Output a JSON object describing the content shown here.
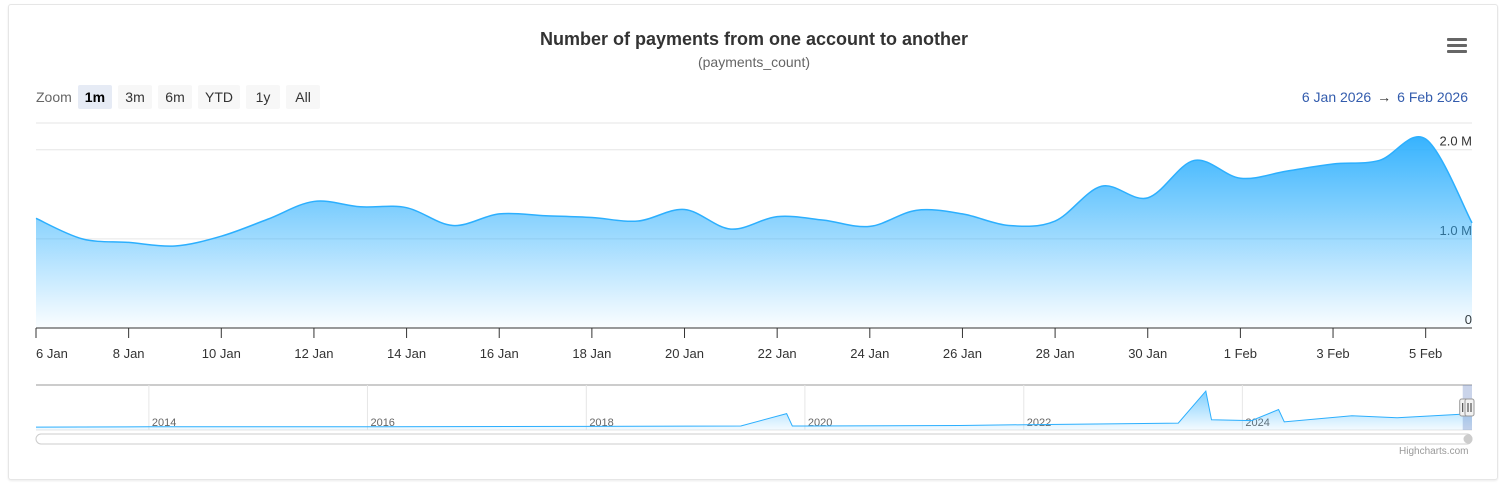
{
  "title": "Number of payments from one account to another",
  "subtitle": "(payments_count)",
  "menu_icon": "hamburger-menu-icon",
  "zoom": {
    "label": "Zoom",
    "buttons": [
      "1m",
      "3m",
      "6m",
      "YTD",
      "1y",
      "All"
    ],
    "active": "1m"
  },
  "range": {
    "from": "6 Jan 2026",
    "arrow": "→",
    "to": "6 Feb 2026"
  },
  "credits": "Highcharts.com",
  "colors": {
    "area_top": "#2caffe",
    "area_bottom": "#ffffff",
    "line": "#2caffe",
    "grid": "#e6e6e6",
    "axis": "#333333",
    "range_text": "#335cad"
  },
  "chart_data": [
    {
      "type": "area",
      "title": "Number of payments from one account to another",
      "subtitle": "(payments_count)",
      "x_tick_labels": [
        "6 Jan",
        "8 Jan",
        "10 Jan",
        "12 Jan",
        "14 Jan",
        "16 Jan",
        "18 Jan",
        "20 Jan",
        "22 Jan",
        "24 Jan",
        "26 Jan",
        "28 Jan",
        "30 Jan",
        "1 Feb",
        "3 Feb",
        "5 Feb"
      ],
      "y_tick_labels": [
        "0",
        "1.0 M",
        "2.0 M"
      ],
      "ylim": [
        0,
        2300000
      ],
      "xlim": [
        "2026-01-06",
        "2026-02-06"
      ],
      "grid": true,
      "series": [
        {
          "x": [
            "2026-01-06",
            "2026-01-07",
            "2026-01-08",
            "2026-01-09",
            "2026-01-10",
            "2026-01-11",
            "2026-01-12",
            "2026-01-13",
            "2026-01-14",
            "2026-01-15",
            "2026-01-16",
            "2026-01-17",
            "2026-01-18",
            "2026-01-19",
            "2026-01-20",
            "2026-01-21",
            "2026-01-22",
            "2026-01-23",
            "2026-01-24",
            "2026-01-25",
            "2026-01-26",
            "2026-01-27",
            "2026-01-28",
            "2026-01-29",
            "2026-01-30",
            "2026-01-31",
            "2026-02-01",
            "2026-02-02",
            "2026-02-03",
            "2026-02-04",
            "2026-02-05",
            "2026-02-06"
          ],
          "values": [
            1230000,
            1000000,
            960000,
            920000,
            1030000,
            1220000,
            1420000,
            1360000,
            1350000,
            1150000,
            1280000,
            1260000,
            1240000,
            1200000,
            1330000,
            1110000,
            1250000,
            1210000,
            1140000,
            1320000,
            1280000,
            1150000,
            1200000,
            1590000,
            1460000,
            1880000,
            1680000,
            1760000,
            1840000,
            1880000,
            2120000,
            1180000
          ]
        }
      ]
    },
    {
      "type": "area",
      "x_tick_labels": [
        "2014",
        "2016",
        "2018",
        "2020",
        "2022",
        "2024"
      ],
      "x": [
        "2012-12-20",
        "2014-01-01",
        "2016-01-01",
        "2018-01-01",
        "2019-06-01",
        "2019-11-01",
        "2019-11-20",
        "2020-01-01",
        "2021-06-01",
        "2022-01-01",
        "2023-06-01",
        "2023-09-01",
        "2023-09-20",
        "2024-02-01",
        "2024-05-01",
        "2024-05-20",
        "2025-01-01",
        "2025-06-01",
        "2025-10-01",
        "2026-02-06"
      ],
      "values": [
        0.02,
        0.03,
        0.03,
        0.04,
        0.05,
        0.35,
        0.05,
        0.05,
        0.06,
        0.08,
        0.12,
        0.9,
        0.2,
        0.18,
        0.45,
        0.15,
        0.3,
        0.25,
        0.3,
        0.35
      ]
    }
  ]
}
